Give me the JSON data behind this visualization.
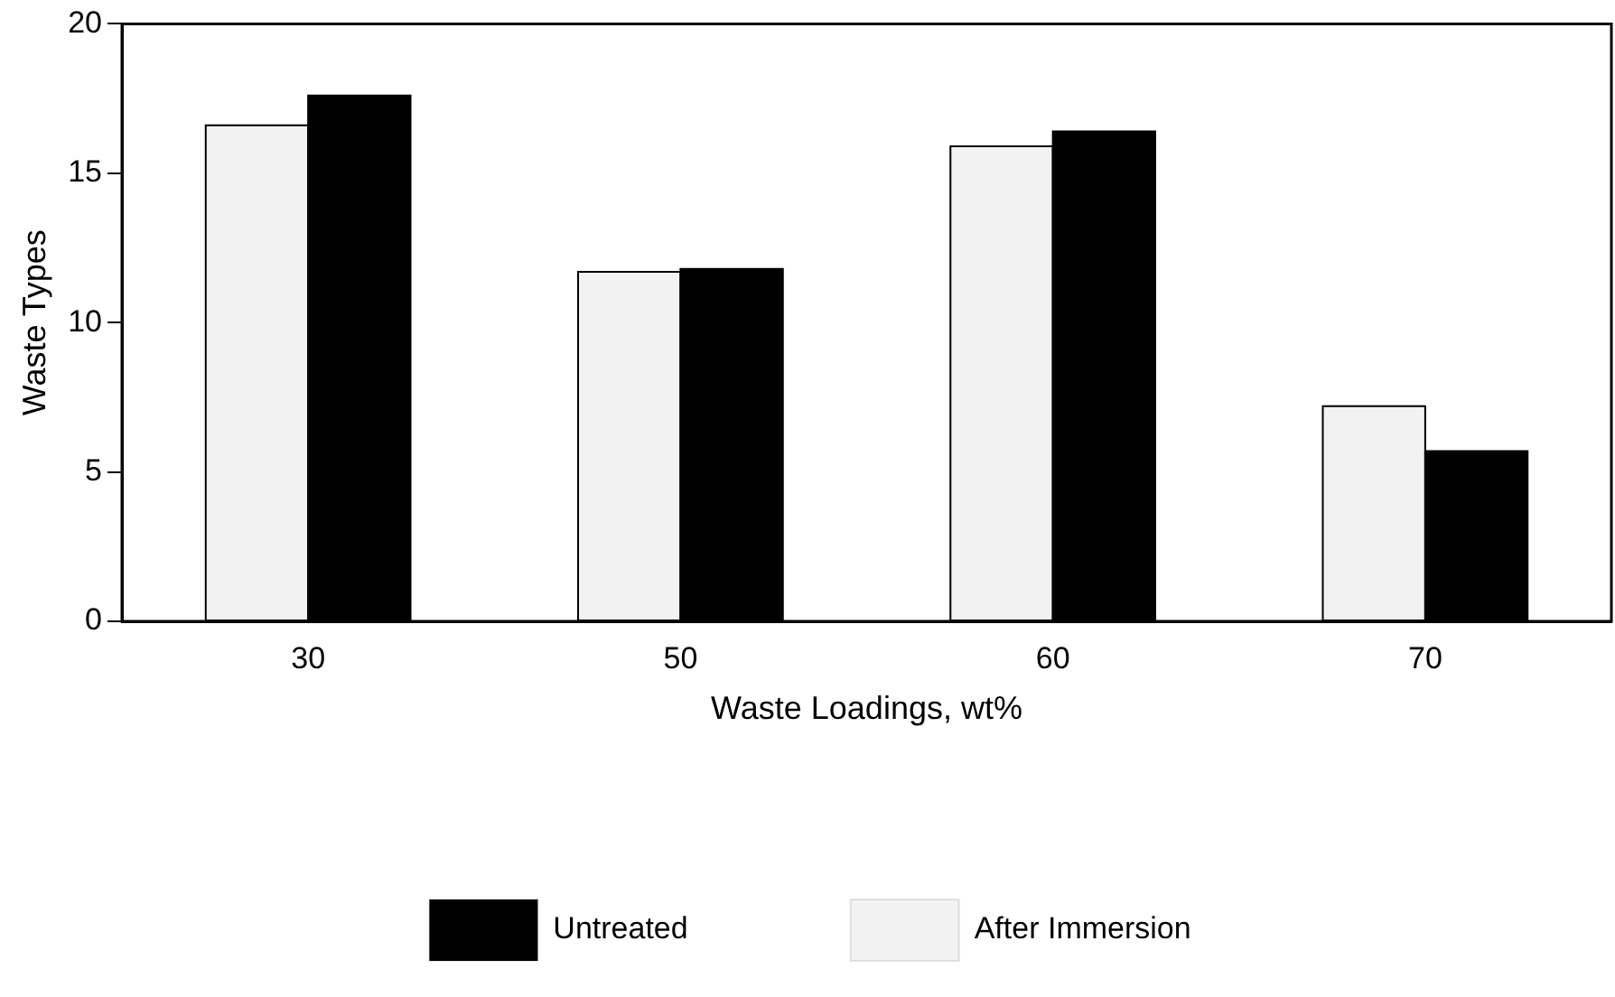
{
  "chart_data": {
    "type": "bar",
    "xlabel": "Waste Loadings, wt%",
    "ylabel": "Waste Types",
    "categories": [
      "30",
      "50",
      "60",
      "70"
    ],
    "series": [
      {
        "name": "After Immersion",
        "color": "#f2f2f2",
        "values": [
          16.6,
          11.7,
          15.9,
          7.2
        ]
      },
      {
        "name": "Untreated",
        "color": "#000000",
        "values": [
          17.6,
          11.8,
          16.4,
          5.7
        ]
      }
    ],
    "ylim": [
      0,
      20
    ],
    "yticks": [
      0,
      5,
      10,
      15,
      20
    ],
    "grid": false,
    "legend": "bottom"
  }
}
